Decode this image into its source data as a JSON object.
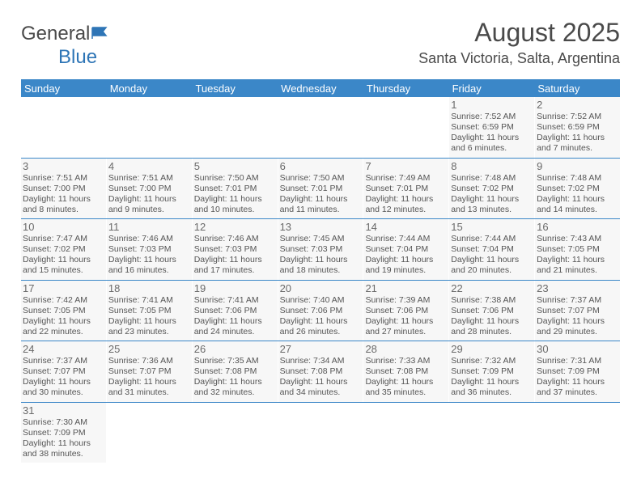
{
  "logo": {
    "part1": "General",
    "part2": "Blue"
  },
  "title": "August 2025",
  "location": "Santa Victoria, Salta, Argentina",
  "colors": {
    "header_bg": "#3b87c8",
    "header_text": "#ffffff",
    "cell_bg": "#f7f7f7",
    "day_num": "#6a6a6a",
    "body_text": "#555555",
    "rule": "#3b87c8"
  },
  "typography": {
    "title_fontsize": 32,
    "location_fontsize": 18,
    "header_fontsize": 13,
    "daynum_fontsize": 13,
    "body_fontsize": 10.5
  },
  "weekdays": [
    "Sunday",
    "Monday",
    "Tuesday",
    "Wednesday",
    "Thursday",
    "Friday",
    "Saturday"
  ],
  "weeks": [
    [
      {
        "empty": true
      },
      {
        "empty": true
      },
      {
        "empty": true
      },
      {
        "empty": true
      },
      {
        "empty": true
      },
      {
        "num": "1",
        "sunrise": "Sunrise: 7:52 AM",
        "sunset": "Sunset: 6:59 PM",
        "daylight1": "Daylight: 11 hours",
        "daylight2": "and 6 minutes."
      },
      {
        "num": "2",
        "sunrise": "Sunrise: 7:52 AM",
        "sunset": "Sunset: 6:59 PM",
        "daylight1": "Daylight: 11 hours",
        "daylight2": "and 7 minutes."
      }
    ],
    [
      {
        "num": "3",
        "sunrise": "Sunrise: 7:51 AM",
        "sunset": "Sunset: 7:00 PM",
        "daylight1": "Daylight: 11 hours",
        "daylight2": "and 8 minutes."
      },
      {
        "num": "4",
        "sunrise": "Sunrise: 7:51 AM",
        "sunset": "Sunset: 7:00 PM",
        "daylight1": "Daylight: 11 hours",
        "daylight2": "and 9 minutes."
      },
      {
        "num": "5",
        "sunrise": "Sunrise: 7:50 AM",
        "sunset": "Sunset: 7:01 PM",
        "daylight1": "Daylight: 11 hours",
        "daylight2": "and 10 minutes."
      },
      {
        "num": "6",
        "sunrise": "Sunrise: 7:50 AM",
        "sunset": "Sunset: 7:01 PM",
        "daylight1": "Daylight: 11 hours",
        "daylight2": "and 11 minutes."
      },
      {
        "num": "7",
        "sunrise": "Sunrise: 7:49 AM",
        "sunset": "Sunset: 7:01 PM",
        "daylight1": "Daylight: 11 hours",
        "daylight2": "and 12 minutes."
      },
      {
        "num": "8",
        "sunrise": "Sunrise: 7:48 AM",
        "sunset": "Sunset: 7:02 PM",
        "daylight1": "Daylight: 11 hours",
        "daylight2": "and 13 minutes."
      },
      {
        "num": "9",
        "sunrise": "Sunrise: 7:48 AM",
        "sunset": "Sunset: 7:02 PM",
        "daylight1": "Daylight: 11 hours",
        "daylight2": "and 14 minutes."
      }
    ],
    [
      {
        "num": "10",
        "sunrise": "Sunrise: 7:47 AM",
        "sunset": "Sunset: 7:02 PM",
        "daylight1": "Daylight: 11 hours",
        "daylight2": "and 15 minutes."
      },
      {
        "num": "11",
        "sunrise": "Sunrise: 7:46 AM",
        "sunset": "Sunset: 7:03 PM",
        "daylight1": "Daylight: 11 hours",
        "daylight2": "and 16 minutes."
      },
      {
        "num": "12",
        "sunrise": "Sunrise: 7:46 AM",
        "sunset": "Sunset: 7:03 PM",
        "daylight1": "Daylight: 11 hours",
        "daylight2": "and 17 minutes."
      },
      {
        "num": "13",
        "sunrise": "Sunrise: 7:45 AM",
        "sunset": "Sunset: 7:03 PM",
        "daylight1": "Daylight: 11 hours",
        "daylight2": "and 18 minutes."
      },
      {
        "num": "14",
        "sunrise": "Sunrise: 7:44 AM",
        "sunset": "Sunset: 7:04 PM",
        "daylight1": "Daylight: 11 hours",
        "daylight2": "and 19 minutes."
      },
      {
        "num": "15",
        "sunrise": "Sunrise: 7:44 AM",
        "sunset": "Sunset: 7:04 PM",
        "daylight1": "Daylight: 11 hours",
        "daylight2": "and 20 minutes."
      },
      {
        "num": "16",
        "sunrise": "Sunrise: 7:43 AM",
        "sunset": "Sunset: 7:05 PM",
        "daylight1": "Daylight: 11 hours",
        "daylight2": "and 21 minutes."
      }
    ],
    [
      {
        "num": "17",
        "sunrise": "Sunrise: 7:42 AM",
        "sunset": "Sunset: 7:05 PM",
        "daylight1": "Daylight: 11 hours",
        "daylight2": "and 22 minutes."
      },
      {
        "num": "18",
        "sunrise": "Sunrise: 7:41 AM",
        "sunset": "Sunset: 7:05 PM",
        "daylight1": "Daylight: 11 hours",
        "daylight2": "and 23 minutes."
      },
      {
        "num": "19",
        "sunrise": "Sunrise: 7:41 AM",
        "sunset": "Sunset: 7:06 PM",
        "daylight1": "Daylight: 11 hours",
        "daylight2": "and 24 minutes."
      },
      {
        "num": "20",
        "sunrise": "Sunrise: 7:40 AM",
        "sunset": "Sunset: 7:06 PM",
        "daylight1": "Daylight: 11 hours",
        "daylight2": "and 26 minutes."
      },
      {
        "num": "21",
        "sunrise": "Sunrise: 7:39 AM",
        "sunset": "Sunset: 7:06 PM",
        "daylight1": "Daylight: 11 hours",
        "daylight2": "and 27 minutes."
      },
      {
        "num": "22",
        "sunrise": "Sunrise: 7:38 AM",
        "sunset": "Sunset: 7:06 PM",
        "daylight1": "Daylight: 11 hours",
        "daylight2": "and 28 minutes."
      },
      {
        "num": "23",
        "sunrise": "Sunrise: 7:37 AM",
        "sunset": "Sunset: 7:07 PM",
        "daylight1": "Daylight: 11 hours",
        "daylight2": "and 29 minutes."
      }
    ],
    [
      {
        "num": "24",
        "sunrise": "Sunrise: 7:37 AM",
        "sunset": "Sunset: 7:07 PM",
        "daylight1": "Daylight: 11 hours",
        "daylight2": "and 30 minutes."
      },
      {
        "num": "25",
        "sunrise": "Sunrise: 7:36 AM",
        "sunset": "Sunset: 7:07 PM",
        "daylight1": "Daylight: 11 hours",
        "daylight2": "and 31 minutes."
      },
      {
        "num": "26",
        "sunrise": "Sunrise: 7:35 AM",
        "sunset": "Sunset: 7:08 PM",
        "daylight1": "Daylight: 11 hours",
        "daylight2": "and 32 minutes."
      },
      {
        "num": "27",
        "sunrise": "Sunrise: 7:34 AM",
        "sunset": "Sunset: 7:08 PM",
        "daylight1": "Daylight: 11 hours",
        "daylight2": "and 34 minutes."
      },
      {
        "num": "28",
        "sunrise": "Sunrise: 7:33 AM",
        "sunset": "Sunset: 7:08 PM",
        "daylight1": "Daylight: 11 hours",
        "daylight2": "and 35 minutes."
      },
      {
        "num": "29",
        "sunrise": "Sunrise: 7:32 AM",
        "sunset": "Sunset: 7:09 PM",
        "daylight1": "Daylight: 11 hours",
        "daylight2": "and 36 minutes."
      },
      {
        "num": "30",
        "sunrise": "Sunrise: 7:31 AM",
        "sunset": "Sunset: 7:09 PM",
        "daylight1": "Daylight: 11 hours",
        "daylight2": "and 37 minutes."
      }
    ],
    [
      {
        "num": "31",
        "sunrise": "Sunrise: 7:30 AM",
        "sunset": "Sunset: 7:09 PM",
        "daylight1": "Daylight: 11 hours",
        "daylight2": "and 38 minutes."
      },
      {
        "empty": true
      },
      {
        "empty": true
      },
      {
        "empty": true
      },
      {
        "empty": true
      },
      {
        "empty": true
      },
      {
        "empty": true
      }
    ]
  ]
}
